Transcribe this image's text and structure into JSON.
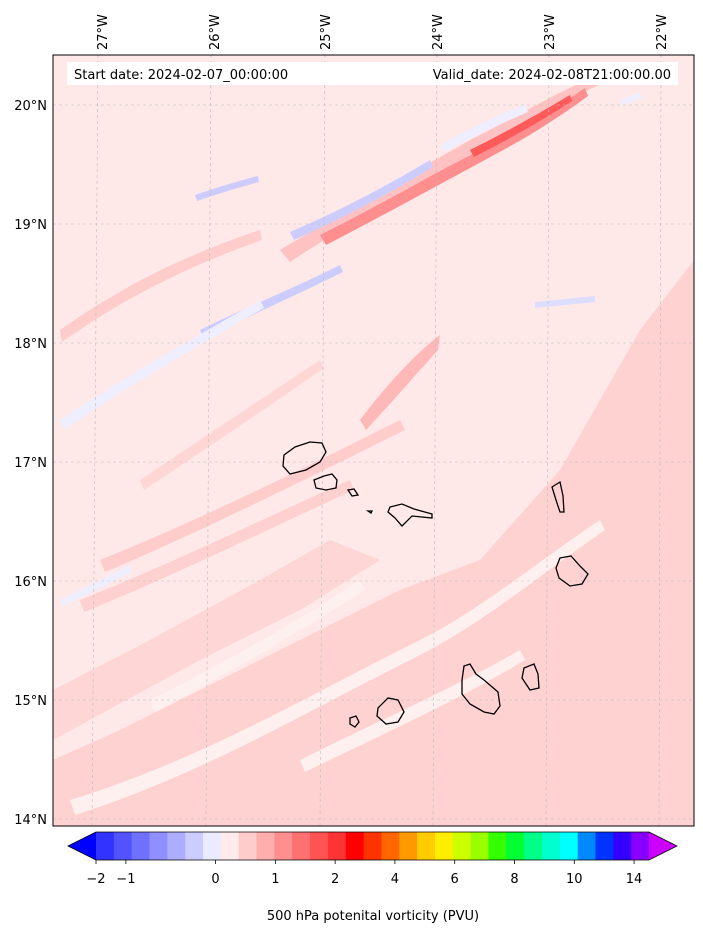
{
  "map": {
    "start_label": "Start date: 2024-02-07_00:00:00",
    "valid_label": "Valid_date: 2024-02-08T21:00:00.00",
    "lon_labels": [
      "27°W",
      "26°W",
      "25°W",
      "24°W",
      "23°W",
      "22°W"
    ],
    "lat_labels": [
      "20°N",
      "19°N",
      "18°N",
      "17°N",
      "16°N",
      "15°N",
      "14°N"
    ],
    "background_color": "#ffe8e8",
    "land_outline_color": "#000000"
  },
  "colorbar": {
    "label": "500 hPa potenital vorticity (PVU)",
    "tick_labels": [
      "−2",
      "−1",
      "0",
      "1",
      "2",
      "4",
      "6",
      "8",
      "10",
      "14"
    ],
    "colors": [
      "#0000ff",
      "#3333ff",
      "#5252ff",
      "#7070ff",
      "#8f8fff",
      "#adadff",
      "#ccccff",
      "#ebebff",
      "#ffebeb",
      "#ffcccc",
      "#ffadad",
      "#ff8f8f",
      "#ff7070",
      "#ff5252",
      "#ff3333",
      "#ff0000",
      "#ff3300",
      "#ff6600",
      "#ff9900",
      "#ffcc00",
      "#ffee00",
      "#ccff00",
      "#99ff00",
      "#33ff00",
      "#00ff33",
      "#00ff88",
      "#00ffcc",
      "#00ffff",
      "#0088ff",
      "#0033ff",
      "#3300ff",
      "#8800ff",
      "#cc00ff"
    ]
  }
}
